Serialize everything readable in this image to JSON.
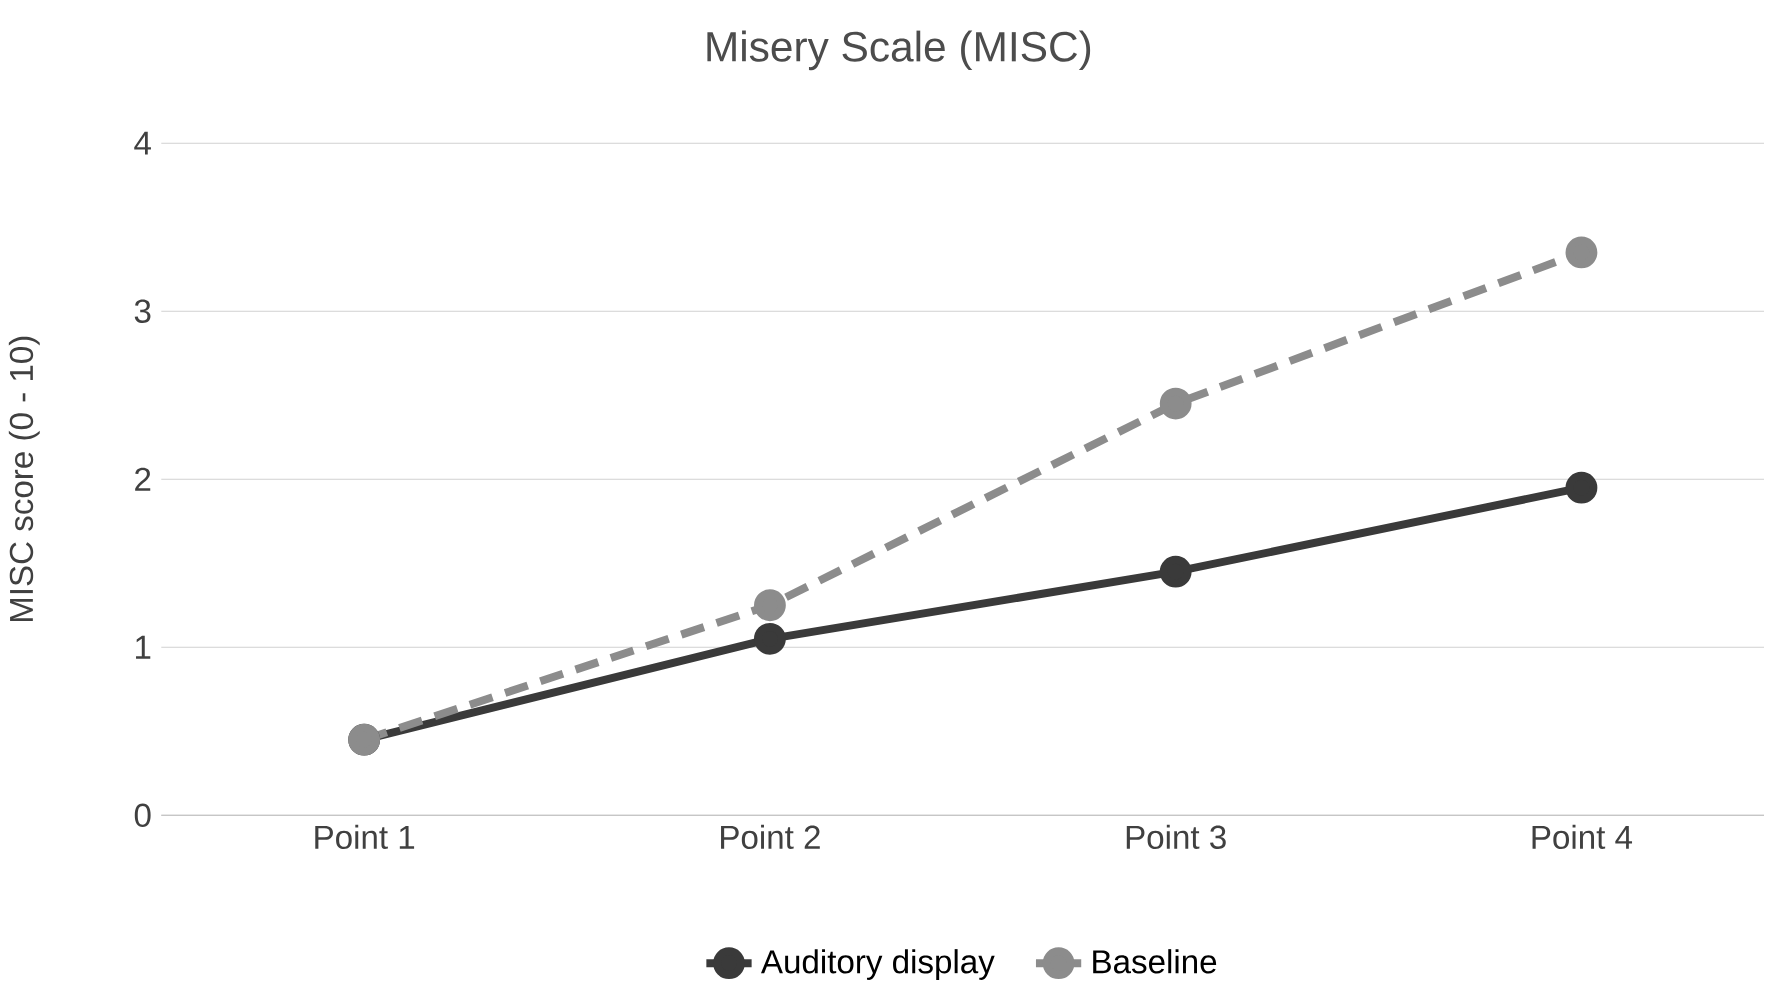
{
  "chart_data": {
    "type": "line",
    "title": "Misery Scale (MISC)",
    "ylabel": "MISC score (0 - 10)",
    "categories": [
      "Point 1",
      "Point 2",
      "Point 3",
      "Point 4"
    ],
    "series": [
      {
        "name": "Auditory display",
        "color": "#3a3a3a",
        "values": [
          0.45,
          1.05,
          1.45,
          1.95
        ],
        "line_style": "solid"
      },
      {
        "name": "Baseline",
        "color": "#8c8c8c",
        "values": [
          0.45,
          1.25,
          2.45,
          3.35
        ],
        "line_style": "dashed"
      }
    ],
    "ylim": [
      0,
      4
    ],
    "yticks": [
      0,
      1,
      2,
      3,
      4
    ],
    "grid": "y",
    "legend": "bottom",
    "marker": "circle"
  }
}
